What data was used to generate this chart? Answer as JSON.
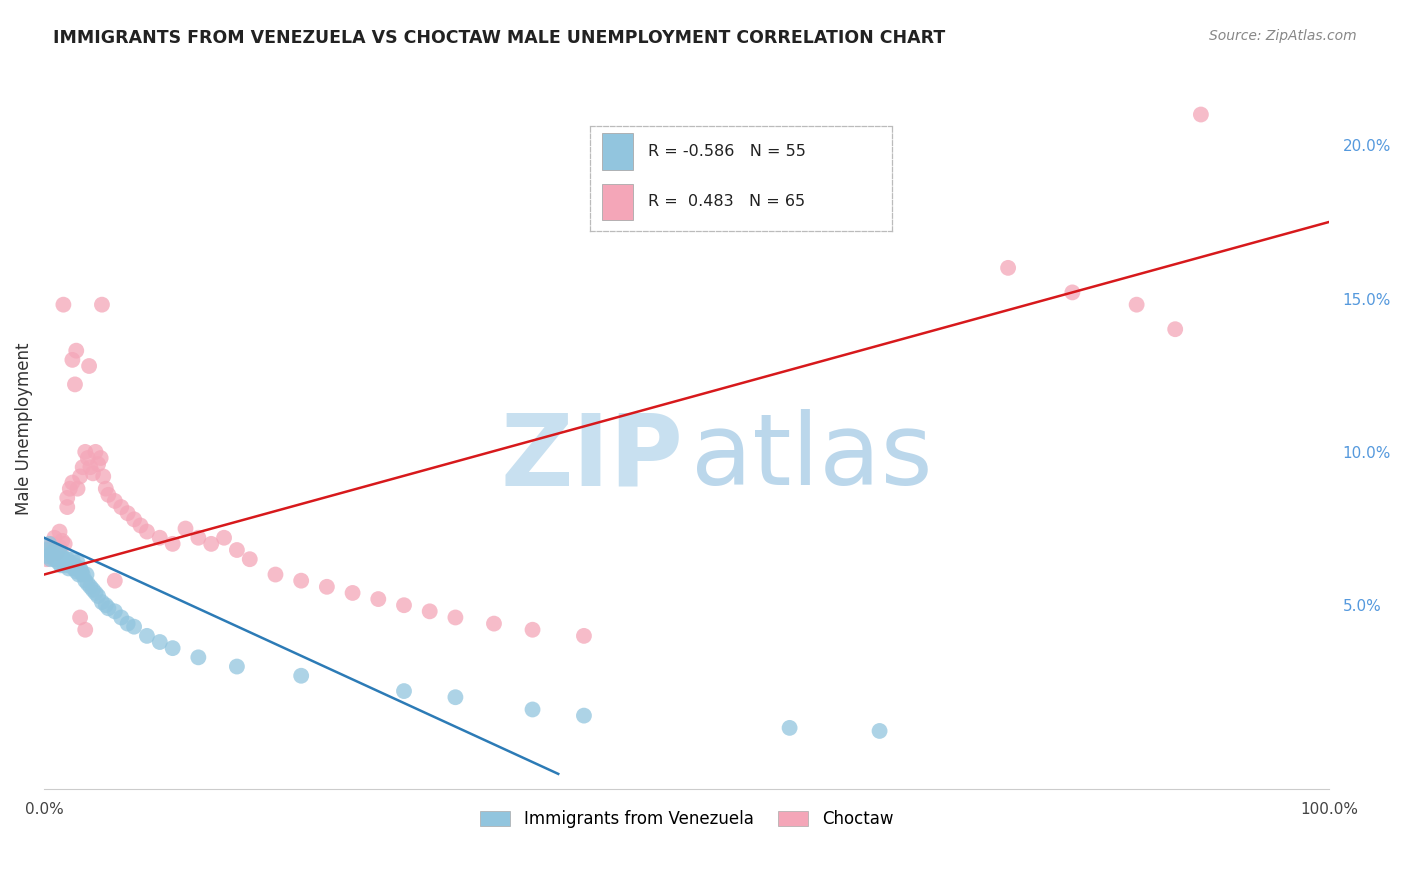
{
  "title": "IMMIGRANTS FROM VENEZUELA VS CHOCTAW MALE UNEMPLOYMENT CORRELATION CHART",
  "source": "Source: ZipAtlas.com",
  "ylabel": "Male Unemployment",
  "xlim": [
    0.0,
    1.0
  ],
  "ylim": [
    -0.01,
    0.225
  ],
  "y_ticks": [
    0.05,
    0.1,
    0.15,
    0.2
  ],
  "y_tick_labels": [
    "5.0%",
    "10.0%",
    "15.0%",
    "20.0%"
  ],
  "color_blue": "#92c5de",
  "color_pink": "#f4a6b8",
  "line_color_blue": "#2c7bb6",
  "line_color_pink": "#d7191c",
  "watermark_zip_color": "#c8e0f0",
  "watermark_atlas_color": "#b0d0e8",
  "background_color": "#ffffff",
  "grid_color": "#dddddd",
  "right_axis_color": "#5599dd",
  "title_color": "#222222",
  "blue_line_x0": 0.0,
  "blue_line_y0": 0.072,
  "blue_line_x1": 0.4,
  "blue_line_y1": -0.005,
  "pink_line_x0": 0.0,
  "pink_line_y0": 0.06,
  "pink_line_x1": 1.0,
  "pink_line_y1": 0.175,
  "blue_scatter_x": [
    0.002,
    0.003,
    0.004,
    0.005,
    0.006,
    0.007,
    0.008,
    0.009,
    0.01,
    0.011,
    0.012,
    0.013,
    0.014,
    0.015,
    0.016,
    0.017,
    0.018,
    0.019,
    0.02,
    0.021,
    0.022,
    0.023,
    0.024,
    0.025,
    0.026,
    0.027,
    0.028,
    0.029,
    0.03,
    0.032,
    0.033,
    0.034,
    0.036,
    0.038,
    0.04,
    0.042,
    0.045,
    0.048,
    0.05,
    0.055,
    0.06,
    0.065,
    0.07,
    0.08,
    0.09,
    0.1,
    0.12,
    0.15,
    0.2,
    0.28,
    0.32,
    0.38,
    0.42,
    0.58,
    0.65
  ],
  "blue_scatter_y": [
    0.068,
    0.066,
    0.07,
    0.065,
    0.067,
    0.066,
    0.065,
    0.068,
    0.065,
    0.064,
    0.067,
    0.063,
    0.066,
    0.065,
    0.063,
    0.064,
    0.065,
    0.062,
    0.064,
    0.063,
    0.065,
    0.062,
    0.063,
    0.061,
    0.064,
    0.06,
    0.062,
    0.061,
    0.06,
    0.058,
    0.06,
    0.057,
    0.056,
    0.055,
    0.054,
    0.053,
    0.051,
    0.05,
    0.049,
    0.048,
    0.046,
    0.044,
    0.043,
    0.04,
    0.038,
    0.036,
    0.033,
    0.03,
    0.027,
    0.022,
    0.02,
    0.016,
    0.014,
    0.01,
    0.009
  ],
  "pink_scatter_x": [
    0.002,
    0.004,
    0.006,
    0.008,
    0.01,
    0.012,
    0.014,
    0.016,
    0.018,
    0.02,
    0.022,
    0.024,
    0.026,
    0.028,
    0.03,
    0.032,
    0.034,
    0.036,
    0.038,
    0.04,
    0.042,
    0.044,
    0.046,
    0.048,
    0.05,
    0.055,
    0.06,
    0.065,
    0.07,
    0.075,
    0.08,
    0.09,
    0.1,
    0.11,
    0.12,
    0.13,
    0.14,
    0.15,
    0.16,
    0.18,
    0.2,
    0.22,
    0.24,
    0.26,
    0.28,
    0.3,
    0.32,
    0.35,
    0.38,
    0.42,
    0.015,
    0.025,
    0.035,
    0.045,
    0.055,
    0.018,
    0.022,
    0.012,
    0.028,
    0.032,
    0.75,
    0.8,
    0.85,
    0.88,
    0.9
  ],
  "pink_scatter_y": [
    0.065,
    0.068,
    0.07,
    0.072,
    0.067,
    0.069,
    0.071,
    0.07,
    0.085,
    0.088,
    0.13,
    0.122,
    0.088,
    0.092,
    0.095,
    0.1,
    0.098,
    0.095,
    0.093,
    0.1,
    0.096,
    0.098,
    0.092,
    0.088,
    0.086,
    0.084,
    0.082,
    0.08,
    0.078,
    0.076,
    0.074,
    0.072,
    0.07,
    0.075,
    0.072,
    0.07,
    0.072,
    0.068,
    0.065,
    0.06,
    0.058,
    0.056,
    0.054,
    0.052,
    0.05,
    0.048,
    0.046,
    0.044,
    0.042,
    0.04,
    0.148,
    0.133,
    0.128,
    0.148,
    0.058,
    0.082,
    0.09,
    0.074,
    0.046,
    0.042,
    0.16,
    0.152,
    0.148,
    0.14,
    0.21
  ]
}
